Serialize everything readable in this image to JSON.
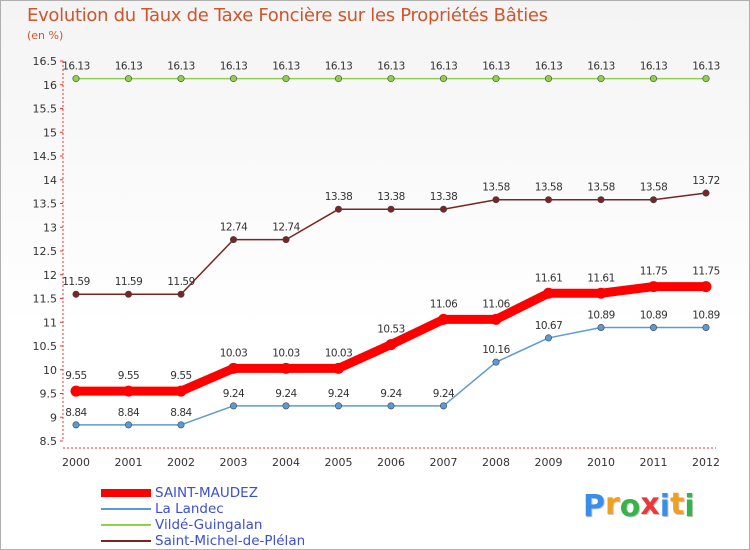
{
  "chart_data": {
    "type": "line",
    "title": "Evolution du Taux de Taxe Foncière sur les Propriétés Bâties",
    "subtitle": "(en %)",
    "xlabel": "",
    "ylabel": "",
    "x": [
      "2000",
      "2001",
      "2002",
      "2003",
      "2004",
      "2005",
      "2006",
      "2007",
      "2008",
      "2009",
      "2010",
      "2011",
      "2012"
    ],
    "ylim": [
      8.5,
      16.5
    ],
    "yticks": [
      "8.5",
      "9",
      "9.5",
      "10",
      "10.5",
      "11",
      "11.5",
      "12",
      "12.5",
      "13",
      "13.5",
      "14",
      "14.5",
      "15",
      "15.5",
      "16",
      "16.5"
    ],
    "grid": false,
    "legend_position": "bottom-left",
    "series": [
      {
        "name": "SAINT-MAUDEZ",
        "color": "#ff0000",
        "values": [
          9.55,
          9.55,
          9.55,
          10.03,
          10.03,
          10.03,
          10.53,
          11.06,
          11.06,
          11.61,
          11.61,
          11.75,
          11.75
        ],
        "labels": [
          "9.55",
          "9.55",
          "9.55",
          "10.03",
          "10.03",
          "10.03",
          "10.53",
          "11.06",
          "11.06",
          "11.61",
          "11.61",
          "11.75",
          "11.75"
        ]
      },
      {
        "name": "La Landec",
        "color": "#5b9bd5",
        "values": [
          8.84,
          8.84,
          8.84,
          9.24,
          9.24,
          9.24,
          9.24,
          9.24,
          10.16,
          10.67,
          10.89,
          10.89,
          10.89
        ],
        "labels": [
          "8.84",
          "8.84",
          "8.84",
          "9.24",
          "9.24",
          "9.24",
          "9.24",
          "9.24",
          "10.16",
          "10.67",
          "10.89",
          "10.89",
          "10.89"
        ]
      },
      {
        "name": "Vildé-Guingalan",
        "color": "#8fd14f",
        "values": [
          16.13,
          16.13,
          16.13,
          16.13,
          16.13,
          16.13,
          16.13,
          16.13,
          16.13,
          16.13,
          16.13,
          16.13,
          16.13
        ],
        "labels": [
          "16.13",
          "16.13",
          "16.13",
          "16.13",
          "16.13",
          "16.13",
          "16.13",
          "16.13",
          "16.13",
          "16.13",
          "16.13",
          "16.13",
          "16.13"
        ]
      },
      {
        "name": "Saint-Michel-de-Plélan",
        "color": "#7a2424",
        "values": [
          11.59,
          11.59,
          11.59,
          12.74,
          12.74,
          13.38,
          13.38,
          13.38,
          13.58,
          13.58,
          13.58,
          13.58,
          13.72
        ],
        "labels": [
          "11.59",
          "11.59",
          "11.59",
          "12.74",
          "12.74",
          "13.38",
          "13.38",
          "13.38",
          "13.58",
          "13.58",
          "13.58",
          "13.58",
          "13.72"
        ]
      }
    ]
  },
  "brand": {
    "letters": [
      "P",
      "r",
      "o",
      "x",
      "i",
      "t",
      "i"
    ],
    "colors": [
      "#3a8ee6",
      "#f0a020",
      "#38b24a",
      "#e83a3a",
      "#3a8ee6",
      "#f0a020",
      "#38b24a"
    ]
  }
}
